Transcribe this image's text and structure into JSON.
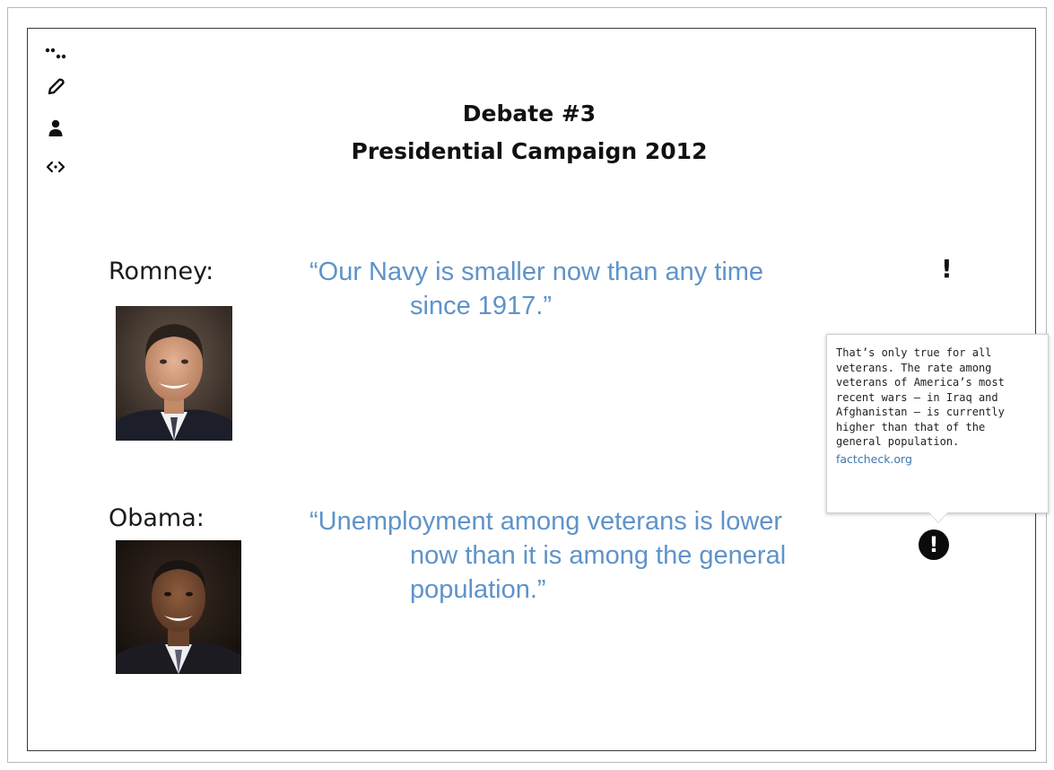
{
  "toolbar": {
    "icons": [
      "dots-icon",
      "pen-icon",
      "user-icon",
      "embed-icon"
    ]
  },
  "slide": {
    "title_line1": "Debate  #3",
    "title_line2": "Presidential Campaign 2012",
    "romney": {
      "label": "Romney:",
      "quote_line1": "“Our Navy is smaller now than any time",
      "quote_line2": "since 1917.”"
    },
    "obama": {
      "label": "Obama:",
      "quote_line1": "“Unemployment among veterans is lower",
      "quote_line2": "now than it is among the general",
      "quote_line3": "population.”"
    },
    "annotation_marker": "!",
    "annotation_marker_active": "!"
  },
  "tooltip": {
    "lines": [
      "That’s only true for all",
      "veterans. The rate among",
      "veterans of America’s most",
      "recent wars — in Iraq and",
      "Afghanistan — is currently",
      "higher than that of the",
      "general population."
    ],
    "source": "factcheck.org"
  },
  "colors": {
    "quote": "#5f93c9",
    "link": "#3f76ad",
    "frame": "#3a3a3a"
  }
}
